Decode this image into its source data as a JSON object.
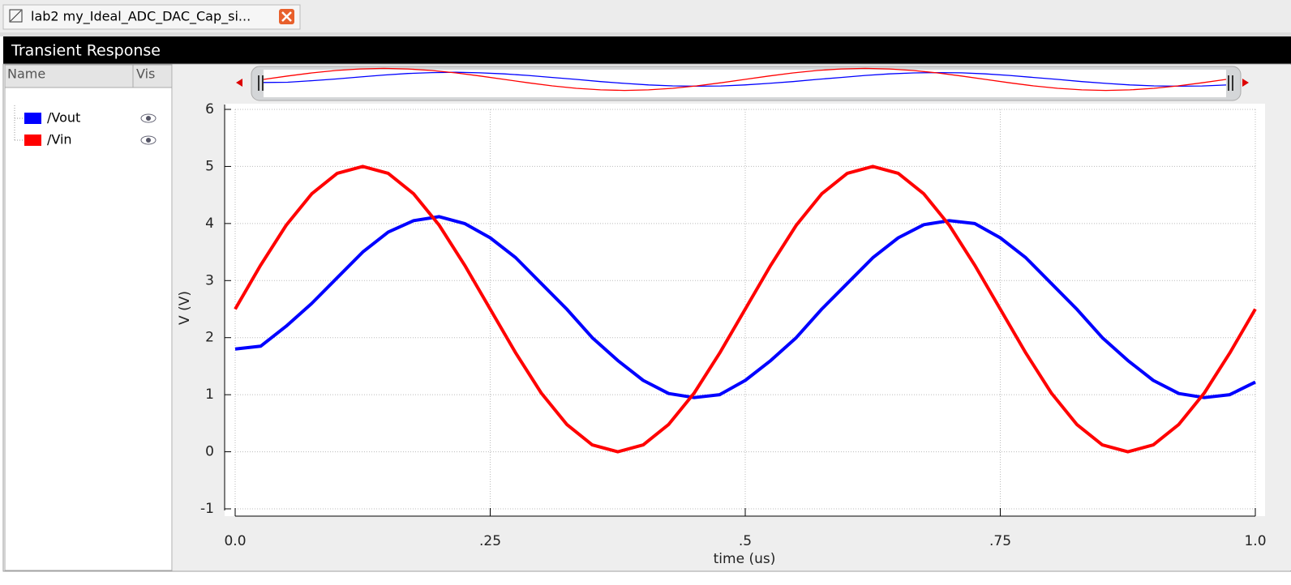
{
  "window": {
    "tab_title": "lab2 my_Ideal_ADC_DAC_Cap_si...",
    "panel_title": "Transient Response",
    "name_header": "Name",
    "vis_header": "Vis"
  },
  "chart_data": {
    "type": "line",
    "xlabel": "time (us)",
    "ylabel": "V (V)",
    "x": [
      0,
      0.025,
      0.05,
      0.075,
      0.1,
      0.125,
      0.15,
      0.175,
      0.2,
      0.225,
      0.25,
      0.275,
      0.3,
      0.325,
      0.35,
      0.375,
      0.4,
      0.425,
      0.45,
      0.475,
      0.5,
      0.525,
      0.55,
      0.575,
      0.6,
      0.625,
      0.65,
      0.675,
      0.7,
      0.725,
      0.75,
      0.775,
      0.8,
      0.825,
      0.85,
      0.875,
      0.9,
      0.925,
      0.95,
      0.975,
      1.0
    ],
    "series": [
      {
        "name": "/Vout",
        "color": "#0000ff",
        "values": [
          1.8,
          1.85,
          2.2,
          2.6,
          3.05,
          3.5,
          3.85,
          4.05,
          4.12,
          4.0,
          3.75,
          3.4,
          2.95,
          2.5,
          2.0,
          1.6,
          1.25,
          1.02,
          0.95,
          1.0,
          1.25,
          1.6,
          2.0,
          2.5,
          2.95,
          3.4,
          3.75,
          3.98,
          4.05,
          4.0,
          3.75,
          3.4,
          2.95,
          2.5,
          2.0,
          1.6,
          1.25,
          1.02,
          0.95,
          1.0,
          1.22
        ]
      },
      {
        "name": "/Vin",
        "color": "#ff0000",
        "values": [
          2.5,
          3.27,
          3.97,
          4.52,
          4.88,
          5.0,
          4.88,
          4.52,
          3.97,
          3.27,
          2.5,
          1.73,
          1.03,
          0.48,
          0.12,
          0.0,
          0.12,
          0.48,
          1.03,
          1.73,
          2.5,
          3.27,
          3.97,
          4.52,
          4.88,
          5.0,
          4.88,
          4.52,
          3.97,
          3.27,
          2.5,
          1.73,
          1.03,
          0.48,
          0.12,
          0.0,
          0.12,
          0.48,
          1.03,
          1.73,
          2.5
        ]
      }
    ],
    "xlim": [
      0,
      1
    ],
    "ylim": [
      -1,
      6
    ],
    "xticks": [
      {
        "value": 0,
        "label": "0.0"
      },
      {
        "value": 0.25,
        "label": ".25"
      },
      {
        "value": 0.5,
        "label": ".5"
      },
      {
        "value": 0.75,
        "label": ".75"
      },
      {
        "value": 1.0,
        "label": "1.0"
      }
    ],
    "yticks": [
      -1,
      0,
      1,
      2,
      3,
      4,
      5,
      6
    ],
    "grid": true
  }
}
